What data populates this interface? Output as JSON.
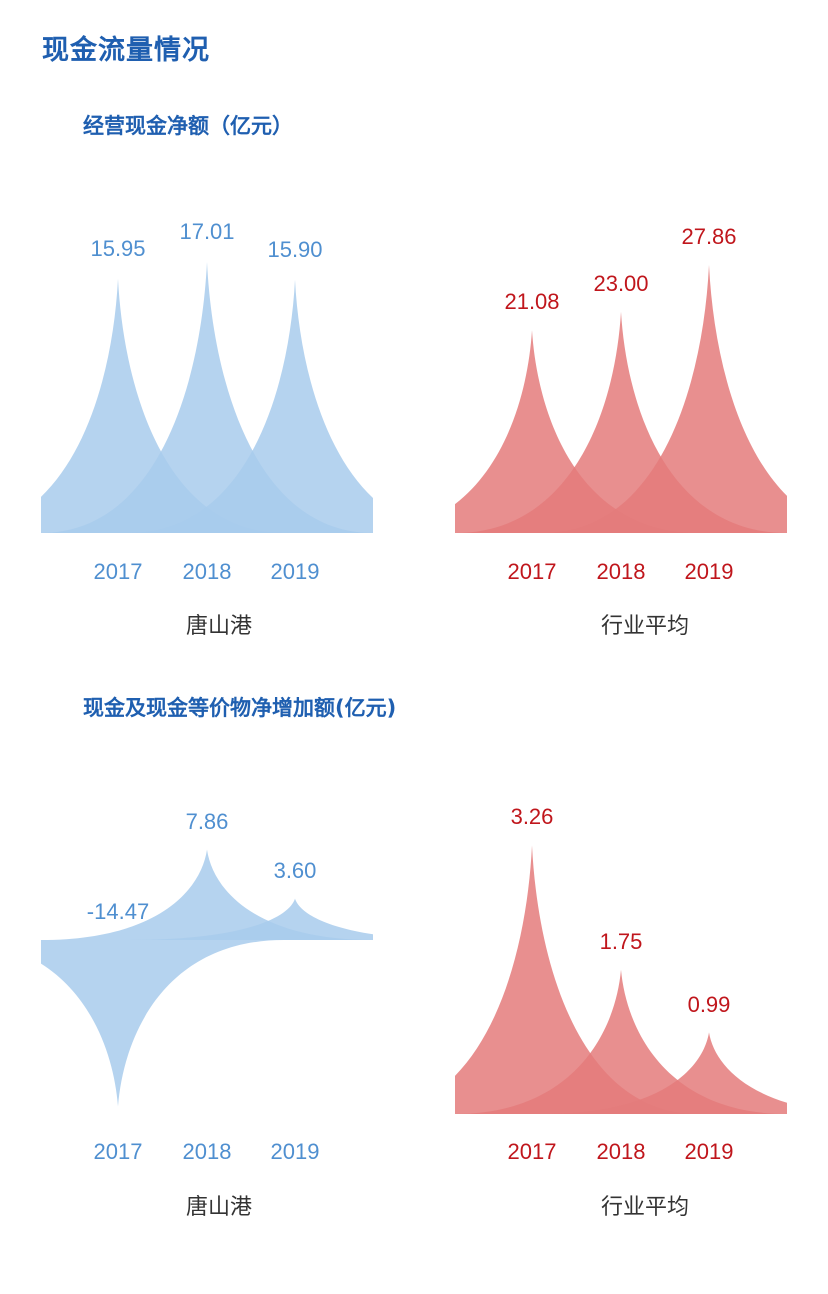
{
  "page": {
    "title": "现金流量情况"
  },
  "colors": {
    "company_fill": "#a8cbec",
    "company_text": "#4f8fd0",
    "industry_fill": "#e47b7b",
    "industry_text": "#c0161c",
    "title_blue": "#1f5fb0",
    "footer_text": "#333333"
  },
  "sections": [
    {
      "title": "经营现金净额（亿元）",
      "charts": [
        {
          "label": "唐山港",
          "years": [
            "2017",
            "2018",
            "2019"
          ],
          "values": [
            "15.95",
            "17.01",
            "15.90"
          ]
        },
        {
          "label": "行业平均",
          "years": [
            "2017",
            "2018",
            "2019"
          ],
          "values": [
            "21.08",
            "23.00",
            "27.86"
          ]
        }
      ]
    },
    {
      "title": "现金及现金等价物净增加额(亿元)",
      "charts": [
        {
          "label": "唐山港",
          "years": [
            "2017",
            "2018",
            "2019"
          ],
          "values": [
            "-14.47",
            "7.86",
            "3.60"
          ]
        },
        {
          "label": "行业平均",
          "years": [
            "2017",
            "2018",
            "2019"
          ],
          "values": [
            "3.26",
            "1.75",
            "0.99"
          ]
        }
      ]
    }
  ],
  "chart_data": [
    {
      "type": "area",
      "title": "经营现金净额（亿元）",
      "subtitle": "唐山港",
      "categories": [
        "2017",
        "2018",
        "2019"
      ],
      "values": [
        15.95,
        17.01,
        15.9
      ],
      "xlabel": "唐山港",
      "ylabel": "",
      "grid": false
    },
    {
      "type": "area",
      "title": "经营现金净额（亿元）",
      "subtitle": "行业平均",
      "categories": [
        "2017",
        "2018",
        "2019"
      ],
      "values": [
        21.08,
        23.0,
        27.86
      ],
      "xlabel": "行业平均",
      "ylabel": "",
      "grid": false
    },
    {
      "type": "area",
      "title": "现金及现金等价物净增加额(亿元)",
      "subtitle": "唐山港",
      "categories": [
        "2017",
        "2018",
        "2019"
      ],
      "values": [
        -14.47,
        7.86,
        3.6
      ],
      "xlabel": "唐山港",
      "ylabel": "",
      "grid": false
    },
    {
      "type": "area",
      "title": "现金及现金等价物净增加额(亿元)",
      "subtitle": "行业平均",
      "categories": [
        "2017",
        "2018",
        "2019"
      ],
      "values": [
        3.26,
        1.75,
        0.99
      ],
      "xlabel": "行业平均",
      "ylabel": "",
      "grid": false
    }
  ]
}
